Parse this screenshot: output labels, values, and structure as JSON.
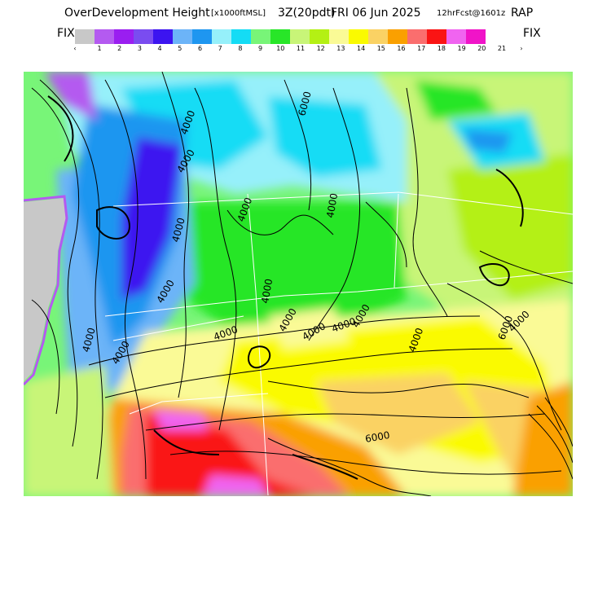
{
  "header": {
    "title": "OverDevelopment Height",
    "units": "[x1000ftMSL]",
    "run": "3Z(20pdt)",
    "valid_date": "FRI 06 Jun 2025",
    "forecast": "12hrFcst@1601z",
    "model": "RAP"
  },
  "colorbar": {
    "fix_left": "FIX",
    "fix_right": "FIX",
    "arrow_left": "‹",
    "arrow_right": "›",
    "colors": [
      "#c8c8c8",
      "#b45af0",
      "#9a1ef0",
      "#7a4cf0",
      "#3c14f0",
      "#6cb4f8",
      "#1e96f0",
      "#96f0fa",
      "#14dcf5",
      "#78f578",
      "#28e628",
      "#c8f578",
      "#b4f014",
      "#fafa96",
      "#fafa00",
      "#fad264",
      "#faa000",
      "#fa6e6e",
      "#fa1414",
      "#f064f0",
      "#f014c8"
    ],
    "labels": [
      "1",
      "2",
      "3",
      "4",
      "5",
      "6",
      "7",
      "8",
      "9",
      "10",
      "11",
      "12",
      "13",
      "14",
      "15",
      "16",
      "17",
      "18",
      "19",
      "20",
      "21"
    ]
  },
  "map": {
    "contour_labels": [
      "4000",
      "4000",
      "6000",
      "4000",
      "4000",
      "4000",
      "4000",
      "4000",
      "4000",
      "4000",
      "4000",
      "4000",
      "4000",
      "4000",
      "4000",
      "4000",
      "6000",
      "4000",
      "6000"
    ]
  }
}
